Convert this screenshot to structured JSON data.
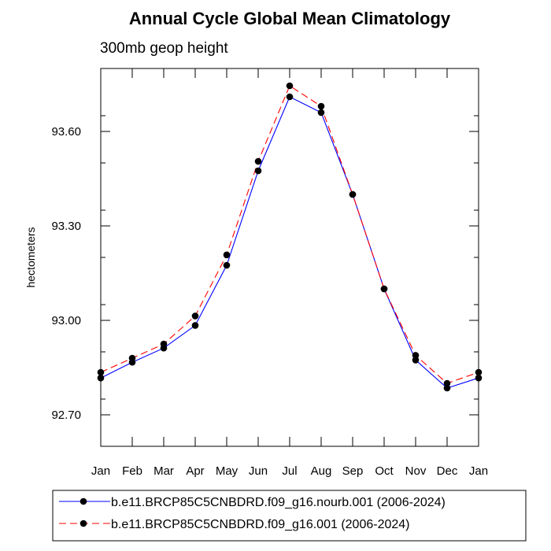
{
  "chart_data": {
    "type": "line",
    "title": "Annual Cycle Global Mean Climatology",
    "subtitle": "300mb geop height",
    "xlabel": "",
    "ylabel": "hectometers",
    "x_categories": [
      "Jan",
      "Feb",
      "Mar",
      "Apr",
      "May",
      "Jun",
      "Jul",
      "Aug",
      "Sep",
      "Oct",
      "Nov",
      "Dec",
      "Jan"
    ],
    "y_ticks": [
      92.7,
      93.0,
      93.3,
      93.6
    ],
    "y_tick_labels": [
      "92.70",
      "93.00",
      "93.30",
      "93.60"
    ],
    "ylim": [
      92.6,
      93.8
    ],
    "grid": false,
    "legend_placement": "bottom",
    "series": [
      {
        "name": "b.e11.BRCP85C5CNBDRD.f09_g16.nourb.001 (2006-2024)",
        "color": "#0000ff",
        "dash": "solid",
        "marker": "filled-circle",
        "values": [
          92.817,
          92.867,
          92.912,
          92.984,
          93.175,
          93.475,
          93.71,
          93.66,
          93.4,
          93.1,
          92.874,
          92.785,
          92.817
        ]
      },
      {
        "name": "b.e11.BRCP85C5CNBDRD.f09_g16.001 (2006-2024)",
        "color": "#ff0000",
        "dash": "dashed",
        "marker": "filled-circle",
        "values": [
          92.835,
          92.88,
          92.925,
          93.014,
          93.208,
          93.505,
          93.745,
          93.68,
          93.4,
          93.1,
          92.889,
          92.8,
          92.835
        ]
      }
    ]
  }
}
